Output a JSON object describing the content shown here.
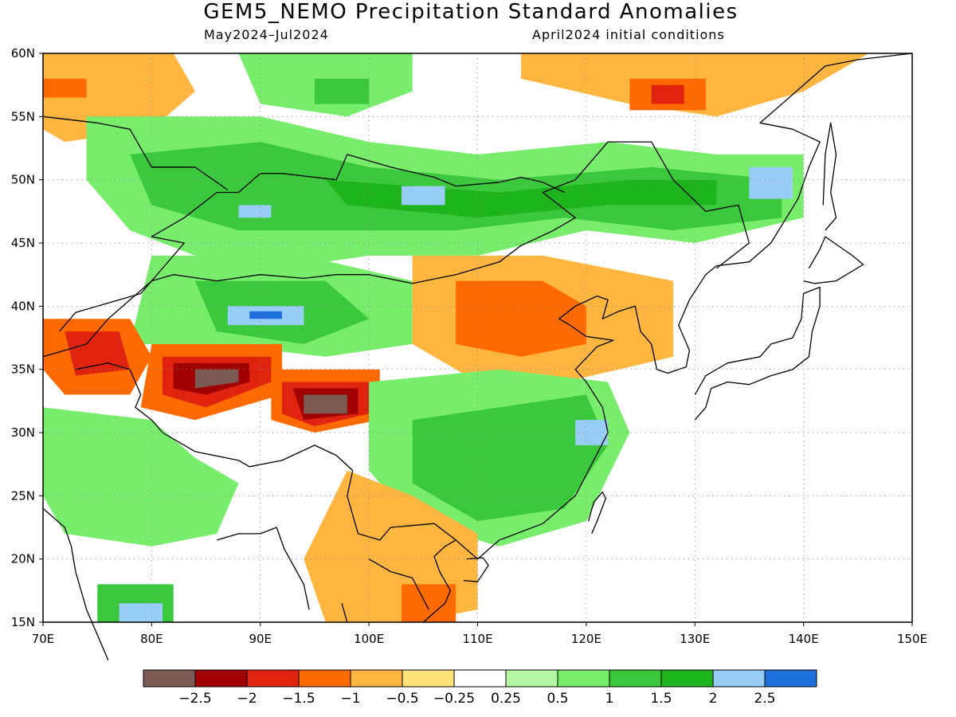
{
  "title": "GEM5_NEMO Precipitation Standard Anomalies",
  "subtitle_left": "May2024–Jul2024",
  "subtitle_right": "April2024 initial conditions",
  "map": {
    "lon_range": [
      70,
      150
    ],
    "lat_range": [
      15,
      60
    ],
    "lon_ticks": [
      "70E",
      "80E",
      "90E",
      "100E",
      "110E",
      "120E",
      "130E",
      "140E",
      "150E"
    ],
    "lat_ticks": [
      "15N",
      "20N",
      "25N",
      "30N",
      "35N",
      "40N",
      "45N",
      "50N",
      "55N",
      "60N"
    ],
    "grid": "dotted"
  },
  "colorbar": {
    "colors": [
      "#7a5a52",
      "#a00000",
      "#e0230f",
      "#ff6a00",
      "#ffb640",
      "#ffe27a",
      "#ffffff",
      "#b4f7a4",
      "#78ed6c",
      "#3cc83c",
      "#1eb41e",
      "#98cdf6",
      "#1e6edc"
    ],
    "labels": [
      "−2.5",
      "−2",
      "−1.5",
      "−1",
      "−0.5",
      "−0.25",
      "0.25",
      "0.5",
      "1",
      "1.5",
      "2",
      "2.5"
    ]
  },
  "anomaly_regions": [
    {
      "name": "west-siberia-orange",
      "class": "-0.5",
      "points": [
        [
          70,
          60
        ],
        [
          82,
          60
        ],
        [
          84,
          57
        ],
        [
          80,
          54
        ],
        [
          72,
          53
        ],
        [
          70,
          54
        ]
      ]
    },
    {
      "name": "west-siberia-core",
      "class": "-1",
      "points": [
        [
          70,
          58
        ],
        [
          74,
          58
        ],
        [
          74,
          56.5
        ],
        [
          70,
          56.5
        ]
      ]
    },
    {
      "name": "central-siberia-green",
      "class": "0.5",
      "points": [
        [
          88,
          60
        ],
        [
          104,
          60
        ],
        [
          104,
          57
        ],
        [
          98,
          55
        ],
        [
          90,
          56
        ]
      ]
    },
    {
      "name": "central-siberia-core",
      "class": "1",
      "points": [
        [
          95,
          58
        ],
        [
          100,
          58
        ],
        [
          100,
          56
        ],
        [
          95,
          56
        ]
      ]
    },
    {
      "name": "east-siberia-orange",
      "class": "-0.5",
      "points": [
        [
          114,
          60
        ],
        [
          146,
          60
        ],
        [
          140,
          57
        ],
        [
          132,
          55
        ],
        [
          124,
          56
        ],
        [
          114,
          58
        ]
      ]
    },
    {
      "name": "east-siberia-core",
      "class": "-1",
      "points": [
        [
          124,
          58
        ],
        [
          131,
          58
        ],
        [
          131,
          55.5
        ],
        [
          124,
          55.5
        ]
      ]
    },
    {
      "name": "east-siberia-peak",
      "class": "-1.5",
      "points": [
        [
          126,
          57.5
        ],
        [
          129,
          57.5
        ],
        [
          129,
          56
        ],
        [
          126,
          56
        ]
      ]
    },
    {
      "name": "kazakh-green",
      "class": "0.5",
      "points": [
        [
          74,
          55
        ],
        [
          90,
          55
        ],
        [
          100,
          53
        ],
        [
          110,
          52
        ],
        [
          122,
          53
        ],
        [
          132,
          52
        ],
        [
          140,
          52
        ],
        [
          140,
          47
        ],
        [
          130,
          45
        ],
        [
          120,
          46
        ],
        [
          110,
          44
        ],
        [
          100,
          44
        ],
        [
          92,
          43
        ],
        [
          84,
          44
        ],
        [
          78,
          46
        ],
        [
          74,
          50
        ]
      ]
    },
    {
      "name": "kazakh-mid",
      "class": "1",
      "points": [
        [
          78,
          52
        ],
        [
          90,
          53
        ],
        [
          100,
          51
        ],
        [
          112,
          50
        ],
        [
          126,
          51
        ],
        [
          138,
          50
        ],
        [
          138,
          47
        ],
        [
          128,
          46
        ],
        [
          118,
          47
        ],
        [
          108,
          46
        ],
        [
          98,
          46
        ],
        [
          88,
          46
        ],
        [
          80,
          48
        ]
      ]
    },
    {
      "name": "mongolia-strong",
      "class": "1.5",
      "points": [
        [
          96,
          50
        ],
        [
          112,
          49
        ],
        [
          124,
          50
        ],
        [
          132,
          50
        ],
        [
          132,
          48
        ],
        [
          122,
          48
        ],
        [
          110,
          47
        ],
        [
          98,
          48
        ]
      ]
    },
    {
      "name": "amur-blue",
      "class": "2",
      "points": [
        [
          135,
          51
        ],
        [
          139,
          51
        ],
        [
          139,
          48.5
        ],
        [
          135,
          48.5
        ]
      ]
    },
    {
      "name": "altai-blue",
      "class": "2",
      "points": [
        [
          103,
          49.5
        ],
        [
          107,
          49.5
        ],
        [
          107,
          48
        ],
        [
          103,
          48
        ]
      ]
    },
    {
      "name": "balkhash-blue",
      "class": "2",
      "points": [
        [
          88,
          48
        ],
        [
          91,
          48
        ],
        [
          91,
          47
        ],
        [
          88,
          47
        ]
      ]
    },
    {
      "name": "tarim-green",
      "class": "0.5",
      "points": [
        [
          80,
          44
        ],
        [
          94,
          44
        ],
        [
          104,
          42
        ],
        [
          104,
          37
        ],
        [
          96,
          36
        ],
        [
          86,
          37
        ],
        [
          78,
          37
        ]
      ]
    },
    {
      "name": "tarim-mid",
      "class": "1",
      "points": [
        [
          84,
          42
        ],
        [
          96,
          42
        ],
        [
          100,
          39
        ],
        [
          94,
          37
        ],
        [
          86,
          38
        ]
      ]
    },
    {
      "name": "tarim-blue",
      "class": "2",
      "points": [
        [
          87,
          40
        ],
        [
          94,
          40
        ],
        [
          94,
          38.5
        ],
        [
          87,
          38.5
        ]
      ]
    },
    {
      "name": "tarim-dark-blue",
      "class": "2.5",
      "points": [
        [
          89,
          39.6
        ],
        [
          92,
          39.6
        ],
        [
          92,
          39.0
        ],
        [
          89,
          39.0
        ]
      ]
    },
    {
      "name": "north-china-orange",
      "class": "-0.5",
      "points": [
        [
          104,
          44
        ],
        [
          116,
          44
        ],
        [
          128,
          42
        ],
        [
          128,
          36
        ],
        [
          118,
          34
        ],
        [
          110,
          34
        ],
        [
          104,
          37
        ]
      ]
    },
    {
      "name": "north-china-mid",
      "class": "-1",
      "points": [
        [
          108,
          42
        ],
        [
          116,
          42
        ],
        [
          120,
          40
        ],
        [
          120,
          37
        ],
        [
          114,
          36
        ],
        [
          108,
          37
        ]
      ]
    },
    {
      "name": "pamir-red",
      "class": "-1",
      "points": [
        [
          70,
          39
        ],
        [
          78,
          39
        ],
        [
          80,
          36
        ],
        [
          78,
          33
        ],
        [
          72,
          33
        ],
        [
          70,
          35
        ]
      ]
    },
    {
      "name": "pamir-core",
      "class": "-1.5",
      "points": [
        [
          72,
          38
        ],
        [
          77,
          38
        ],
        [
          78,
          35
        ],
        [
          73,
          34.5
        ]
      ]
    },
    {
      "name": "tibet-west-orange",
      "class": "-1",
      "points": [
        [
          80,
          37
        ],
        [
          92,
          37
        ],
        [
          92,
          33
        ],
        [
          84,
          31
        ],
        [
          79,
          32
        ]
      ]
    },
    {
      "name": "tibet-west-red",
      "class": "-1.5",
      "points": [
        [
          81,
          36
        ],
        [
          91,
          36
        ],
        [
          91,
          34
        ],
        [
          85,
          32
        ],
        [
          81,
          33
        ]
      ]
    },
    {
      "name": "tibet-west-dark",
      "class": "-2",
      "points": [
        [
          82,
          35.5
        ],
        [
          89,
          35.5
        ],
        [
          89,
          34
        ],
        [
          85,
          33
        ],
        [
          82,
          33.5
        ]
      ]
    },
    {
      "name": "tibet-west-brown",
      "class": "-2.5",
      "points": [
        [
          84,
          35
        ],
        [
          88,
          35
        ],
        [
          88,
          34
        ],
        [
          84,
          33.5
        ]
      ]
    },
    {
      "name": "tibet-east-orange",
      "class": "-1",
      "points": [
        [
          91,
          35
        ],
        [
          101,
          35
        ],
        [
          101,
          31
        ],
        [
          95,
          30
        ],
        [
          91,
          31
        ]
      ]
    },
    {
      "name": "tibet-east-red",
      "class": "-1.5",
      "points": [
        [
          92,
          34
        ],
        [
          100,
          34
        ],
        [
          100,
          31.5
        ],
        [
          95,
          30.5
        ],
        [
          92,
          31.5
        ]
      ]
    },
    {
      "name": "tibet-east-dark",
      "class": "-2",
      "points": [
        [
          93,
          33.5
        ],
        [
          99,
          33.5
        ],
        [
          99,
          31.5
        ],
        [
          94,
          31
        ]
      ]
    },
    {
      "name": "tibet-east-brown",
      "class": "-2.5",
      "points": [
        [
          94,
          33
        ],
        [
          98,
          33
        ],
        [
          98,
          31.5
        ],
        [
          94,
          31.5
        ]
      ]
    },
    {
      "name": "south-china-green",
      "class": "0.5",
      "points": [
        [
          100,
          34
        ],
        [
          112,
          35
        ],
        [
          122,
          34
        ],
        [
          124,
          30
        ],
        [
          120,
          23
        ],
        [
          112,
          21
        ],
        [
          104,
          23
        ],
        [
          100,
          27
        ]
      ]
    },
    {
      "name": "south-china-mid",
      "class": "1",
      "points": [
        [
          104,
          31
        ],
        [
          112,
          32
        ],
        [
          120,
          33
        ],
        [
          122,
          29
        ],
        [
          118,
          24
        ],
        [
          110,
          23
        ],
        [
          104,
          26
        ]
      ]
    },
    {
      "name": "yangtze-blue",
      "class": "2",
      "points": [
        [
          119,
          31
        ],
        [
          122,
          31
        ],
        [
          122,
          29
        ],
        [
          119,
          29
        ]
      ]
    },
    {
      "name": "indochina-orange",
      "class": "-0.5",
      "points": [
        [
          98,
          27
        ],
        [
          104,
          25
        ],
        [
          110,
          22
        ],
        [
          110,
          16
        ],
        [
          104,
          15
        ],
        [
          96,
          15
        ],
        [
          94,
          20
        ]
      ]
    },
    {
      "name": "indochina-mid",
      "class": "-1",
      "points": [
        [
          103,
          18
        ],
        [
          108,
          18
        ],
        [
          108,
          15
        ],
        [
          103,
          15
        ]
      ]
    },
    {
      "name": "india-green",
      "class": "0.5",
      "points": [
        [
          70,
          32
        ],
        [
          80,
          31
        ],
        [
          84,
          28
        ],
        [
          88,
          26
        ],
        [
          86,
          22
        ],
        [
          80,
          21
        ],
        [
          72,
          22
        ],
        [
          70,
          25
        ]
      ]
    },
    {
      "name": "india-south-green",
      "class": "1",
      "points": [
        [
          75,
          18
        ],
        [
          82,
          18
        ],
        [
          82,
          15
        ],
        [
          75,
          15
        ]
      ]
    },
    {
      "name": "india-blue",
      "class": "2",
      "points": [
        [
          77,
          16.5
        ],
        [
          81,
          16.5
        ],
        [
          81,
          15
        ],
        [
          77,
          15
        ]
      ]
    }
  ]
}
